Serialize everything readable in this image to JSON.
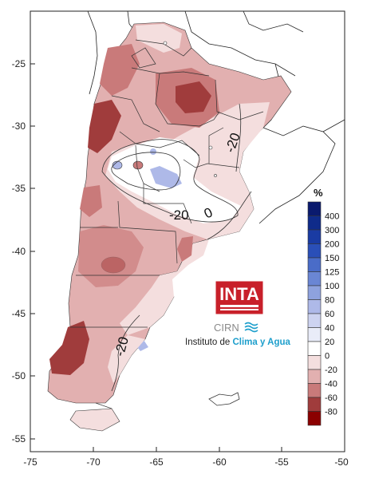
{
  "map": {
    "x_ticks": [
      "-75",
      "-70",
      "-65",
      "-60",
      "-55",
      "-50"
    ],
    "y_ticks": [
      "-25",
      "-30",
      "-35",
      "-40",
      "-45",
      "-50",
      "-55"
    ],
    "contour_labels": [
      "-20",
      "0",
      "-20",
      "-20"
    ]
  },
  "legend": {
    "unit": "%",
    "levels": [
      {
        "label": "400",
        "color": "#0a1a6e"
      },
      {
        "label": "300",
        "color": "#0f2b8a"
      },
      {
        "label": "200",
        "color": "#1a3ba3"
      },
      {
        "label": "150",
        "color": "#2a4fb8"
      },
      {
        "label": "125",
        "color": "#4a6cc8"
      },
      {
        "label": "100",
        "color": "#6a86d4"
      },
      {
        "label": "80",
        "color": "#8ea2de"
      },
      {
        "label": "60",
        "color": "#aeb9e8"
      },
      {
        "label": "40",
        "color": "#cdd3f0"
      },
      {
        "label": "20",
        "color": "#e9ecf8"
      },
      {
        "label": "0",
        "color": "#ffffff"
      },
      {
        "label": "-20",
        "color": "#f4dede"
      },
      {
        "label": "-40",
        "color": "#e2b0b0"
      },
      {
        "label": "-60",
        "color": "#c97a7a"
      },
      {
        "label": "-80",
        "color": "#a03c3c"
      },
      {
        "label": "",
        "color": "#8b0000"
      }
    ]
  },
  "branding": {
    "logo": "INTA",
    "sub": "CIRN",
    "institute_prefix": "Instituto de ",
    "institute_name": "Clima y Agua"
  },
  "colors": {
    "light": "#f4dede",
    "mid": "#e2b0b0",
    "strong": "#c97a7a",
    "dark": "#a03c3c",
    "blue": "#aeb9e8"
  }
}
